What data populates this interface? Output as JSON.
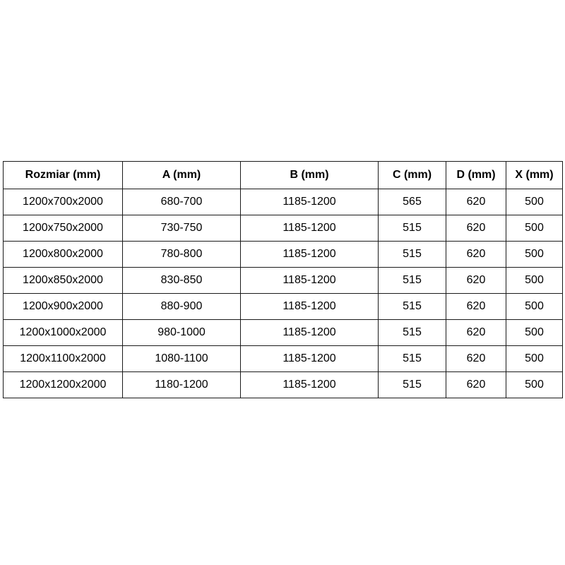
{
  "table": {
    "name": "shower-enclosure-size-spec-table",
    "headers": [
      "Rozmiar (mm)",
      "A (mm)",
      "B (mm)",
      "C (mm)",
      "D (mm)",
      "X (mm)"
    ],
    "rows": [
      [
        "1200x700x2000",
        "680-700",
        "1185-1200",
        "565",
        "620",
        "500"
      ],
      [
        "1200x750x2000",
        "730-750",
        "1185-1200",
        "515",
        "620",
        "500"
      ],
      [
        "1200x800x2000",
        "780-800",
        "1185-1200",
        "515",
        "620",
        "500"
      ],
      [
        "1200x850x2000",
        "830-850",
        "1185-1200",
        "515",
        "620",
        "500"
      ],
      [
        "1200x900x2000",
        "880-900",
        "1185-1200",
        "515",
        "620",
        "500"
      ],
      [
        "1200x1000x2000",
        "980-1000",
        "1185-1200",
        "515",
        "620",
        "500"
      ],
      [
        "1200x1100x2000",
        "1080-1100",
        "1185-1200",
        "515",
        "620",
        "500"
      ],
      [
        "1200x1200x2000",
        "1180-1200",
        "1185-1200",
        "515",
        "620",
        "500"
      ]
    ],
    "colors": {
      "border": "#1a1a1a",
      "text": "#000000",
      "background": "#ffffff"
    }
  }
}
